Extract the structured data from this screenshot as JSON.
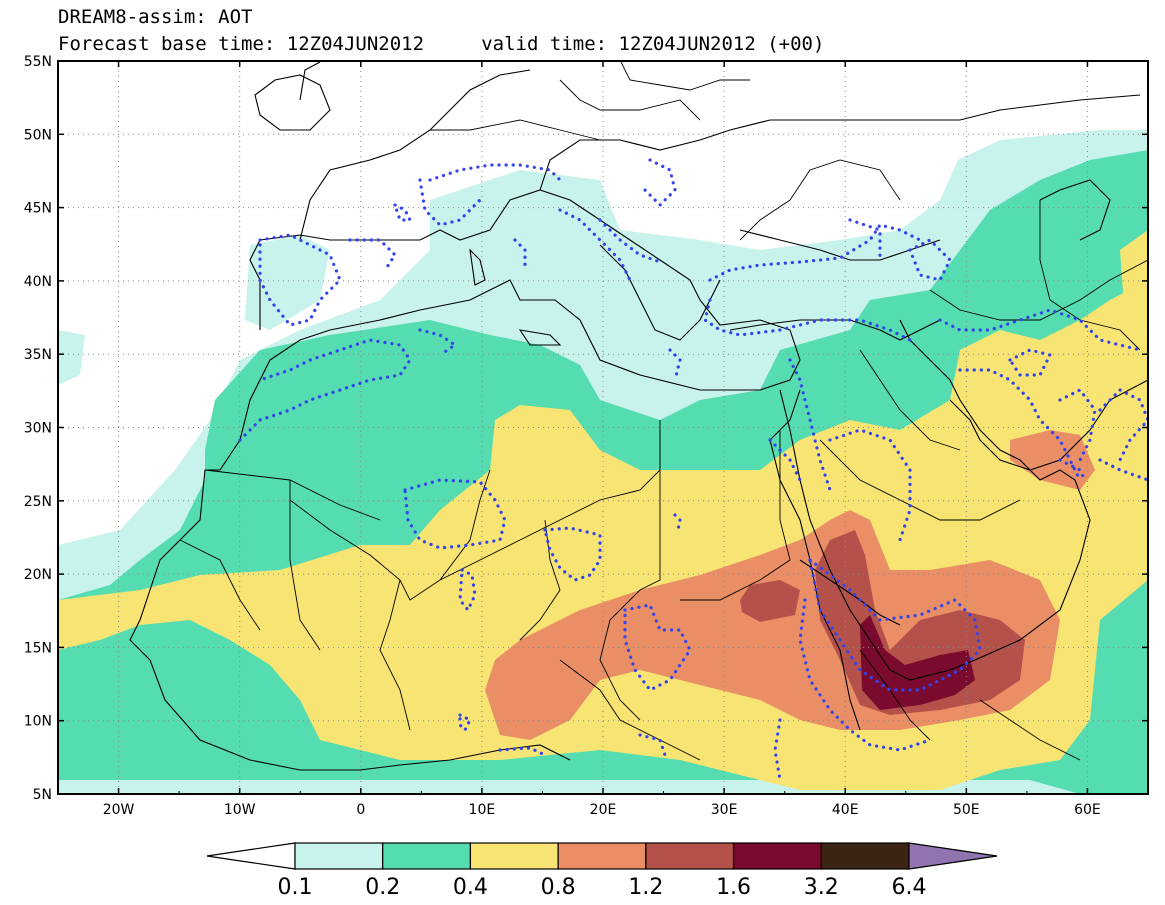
{
  "header": {
    "title_line1": "DREAM8-assim: AOT",
    "title_line2": "Forecast base time: 12Z04JUN2012     valid time: 12Z04JUN2012 (+00)"
  },
  "map": {
    "lon_range": [
      -25,
      65
    ],
    "lat_range": [
      5,
      55
    ],
    "lat_labels": [
      "55N",
      "50N",
      "45N",
      "40N",
      "35N",
      "30N",
      "25N",
      "20N",
      "15N",
      "10N",
      "5N"
    ],
    "lon_labels": [
      "20W",
      "10W",
      "0",
      "10E",
      "20E",
      "30E",
      "40E",
      "50E",
      "60E"
    ],
    "grid": "dotted",
    "observation_contour_color": "#3344ee"
  },
  "colorbar": {
    "labels": [
      "0.1",
      "0.2",
      "0.4",
      "0.8",
      "1.2",
      "1.6",
      "3.2",
      "6.4"
    ],
    "colors": [
      "#ffffff",
      "#c8f2ec",
      "#55dcb0",
      "#f7e472",
      "#ea8e66",
      "#b3514a",
      "#7a0a2e",
      "#3c2414",
      "#9074b0"
    ]
  }
}
